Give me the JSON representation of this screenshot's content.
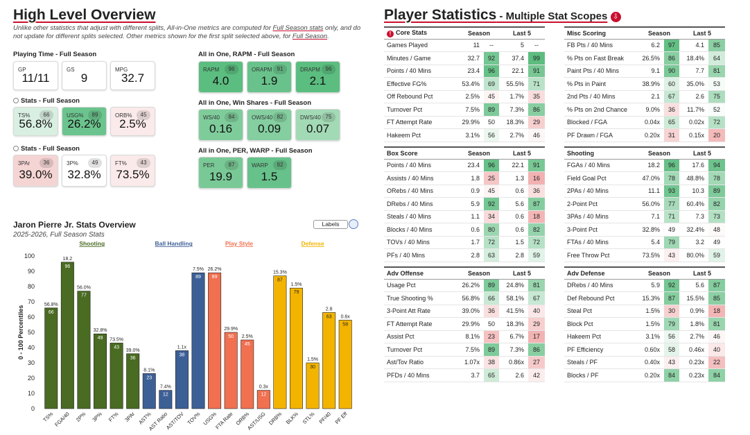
{
  "left": {
    "title": "High Level Overview",
    "note_a": "Unlike other statistics that adjust with different splits, All-in-One metrics are computed for ",
    "note_link": "Full Season stats",
    "note_b": " only, and do not update for different splits selected. Other metrics shown for the first split selected above, for ",
    "note_link2": "Full Season",
    "note_end": ".",
    "playing_time_title": "Playing Time - Full Season",
    "playing_time": [
      {
        "label": "GP",
        "value": "11/11"
      },
      {
        "label": "GS",
        "value": "9"
      },
      {
        "label": "MPG",
        "value": "32.7"
      }
    ],
    "stats1_title": "Stats - Full Season",
    "stats1": [
      {
        "label": "TS%",
        "pct": "66",
        "value": "56.8%",
        "color": "#d9efe1"
      },
      {
        "label": "USG%",
        "pct": "89",
        "value": "26.2%",
        "color": "#6bc48d"
      },
      {
        "label": "ORB%",
        "pct": "45",
        "value": "2.5%",
        "color": "#fbeaea"
      }
    ],
    "stats2_title": "Stats - Full Season",
    "stats2": [
      {
        "label": "3PAr",
        "pct": "36",
        "value": "39.0%",
        "color": "#f5d4d4"
      },
      {
        "label": "3P%",
        "pct": "49",
        "value": "32.8%",
        "color": "#ffffff"
      },
      {
        "label": "FT%",
        "pct": "43",
        "value": "73.5%",
        "color": "#fbeaea"
      }
    ],
    "rapm_title": "All in One, RAPM - Full Season",
    "rapm": [
      {
        "label": "RAPM",
        "pct": "96",
        "value": "4.0",
        "color": "#5bbd7f"
      },
      {
        "label": "ORAPM",
        "pct": "91",
        "value": "1.9",
        "color": "#69c28b"
      },
      {
        "label": "DRAPM",
        "pct": "96",
        "value": "2.1",
        "color": "#5bbd7f"
      }
    ],
    "ws_title": "All in One, Win Shares - Full Season",
    "ws": [
      {
        "label": "WS/40",
        "pct": "84",
        "value": "0.16",
        "color": "#7fcc9b"
      },
      {
        "label": "OWS/40",
        "pct": "82",
        "value": "0.09",
        "color": "#84cea0"
      },
      {
        "label": "DWS/40",
        "pct": "75",
        "value": "0.07",
        "color": "#a3dab6"
      }
    ],
    "per_title": "All in One, PER, WARP - Full Season",
    "per": [
      {
        "label": "PER",
        "pct": "87",
        "value": "19.9",
        "color": "#79c996"
      },
      {
        "label": "WARP",
        "pct": "92",
        "value": "1.5",
        "color": "#67c18a"
      }
    ]
  },
  "chart_title": "Jaron Pierre Jr. Stats Overview",
  "chart_subtitle": "2025-2026, Full Season Stats",
  "labels_button": "Labels",
  "chart_data": {
    "type": "bar",
    "ylabel": "0 - 100 Percentiles",
    "ylim": [
      0,
      100
    ],
    "yticks": [
      0,
      10,
      20,
      30,
      40,
      50,
      60,
      70,
      80,
      90,
      100
    ],
    "groups": [
      {
        "name": "Shooting",
        "color": "#4a6b22"
      },
      {
        "name": "Ball Handling",
        "color": "#3c5f96"
      },
      {
        "name": "Play Style",
        "color": "#f07050"
      },
      {
        "name": "Defense",
        "color": "#f3b400"
      }
    ],
    "bars": [
      {
        "cat": "TS%",
        "value": 66,
        "raw": "56.8%",
        "group": 0
      },
      {
        "cat": "FGA/40",
        "value": 96,
        "raw": "18.2",
        "group": 0
      },
      {
        "cat": "2P%",
        "value": 77,
        "raw": "56.0%",
        "group": 0
      },
      {
        "cat": "3P%",
        "value": 49,
        "raw": "32.8%",
        "group": 0
      },
      {
        "cat": "FT%",
        "value": 43,
        "raw": "73.5%",
        "group": 0
      },
      {
        "cat": "3PAr",
        "value": 36,
        "raw": "39.0%",
        "group": 0
      },
      {
        "cat": "AST%",
        "value": 23,
        "raw": "8.1%",
        "group": 1
      },
      {
        "cat": "AST Ratio",
        "value": 12,
        "raw": "7.4%",
        "group": 1
      },
      {
        "cat": "AST/TOV",
        "value": 38,
        "raw": "1.1x",
        "group": 1
      },
      {
        "cat": "TOV%",
        "value": 89,
        "raw": "7.5%",
        "group": 1
      },
      {
        "cat": "USG%",
        "value": 89,
        "raw": "26.2%",
        "group": 2
      },
      {
        "cat": "FTA Rate",
        "value": 50,
        "raw": "29.9%",
        "group": 2
      },
      {
        "cat": "ORB%",
        "value": 45,
        "raw": "2.5%",
        "group": 2
      },
      {
        "cat": "AST/USG",
        "value": 12,
        "raw": "0.3x",
        "group": 2
      },
      {
        "cat": "DRB%",
        "value": 87,
        "raw": "15.3%",
        "group": 3
      },
      {
        "cat": "BLK%",
        "value": 79,
        "raw": "1.5%",
        "group": 3
      },
      {
        "cat": "STL%",
        "value": 30,
        "raw": "1.5%",
        "group": 3
      },
      {
        "cat": "PF/40",
        "value": 63,
        "raw": "2.8",
        "group": 3
      },
      {
        "cat": "PF Eff",
        "value": 58,
        "raw": "0.6x",
        "group": 3
      }
    ]
  },
  "right": {
    "title": "Player Statistics",
    "subtitle": " - Multiple Stat Scopes",
    "tables": [
      {
        "title": "Core Stats",
        "warn": true,
        "h1": "Season",
        "h2": "Last 5",
        "rows": [
          [
            "Games Played",
            "11",
            "--",
            "5",
            "--"
          ],
          [
            "Minutes / Game",
            "32.7",
            "92",
            "37.4",
            "99"
          ],
          [
            "Points / 40 Mins",
            "23.4",
            "96",
            "22.1",
            "91"
          ],
          [
            "Effective FG%",
            "53.4%",
            "69",
            "55.5%",
            "71"
          ],
          [
            "Off Rebound Pct",
            "2.5%",
            "45",
            "1.7%",
            "35"
          ],
          [
            "Turnover Pct",
            "7.5%",
            "89",
            "7.3%",
            "86"
          ],
          [
            "FT Attempt Rate",
            "29.9%",
            "50",
            "18.3%",
            "29"
          ],
          [
            "Hakeem Pct",
            "3.1%",
            "56",
            "2.7%",
            "46"
          ]
        ]
      },
      {
        "title": "Misc Scoring",
        "warn": false,
        "h1": "Season",
        "h2": "Last 5",
        "rows": [
          [
            "FB Pts / 40 Mins",
            "6.2",
            "97",
            "4.1",
            "85"
          ],
          [
            "% Pts on Fast Break",
            "26.5%",
            "86",
            "18.4%",
            "64"
          ],
          [
            "Paint Pts / 40 Mins",
            "9.1",
            "90",
            "7.7",
            "81"
          ],
          [
            "% Pts in Paint",
            "38.9%",
            "60",
            "35.0%",
            "53"
          ],
          [
            "2nd Pts / 40 Mins",
            "2.1",
            "67",
            "2.6",
            "75"
          ],
          [
            "% Pts on 2nd Chance",
            "9.0%",
            "36",
            "11.7%",
            "52"
          ],
          [
            "Blocked / FGA",
            "0.04x",
            "65",
            "0.02x",
            "72"
          ],
          [
            "PF Drawn / FGA",
            "0.20x",
            "31",
            "0.15x",
            "20"
          ]
        ]
      },
      {
        "title": "Box Score",
        "warn": false,
        "h1": "Season",
        "h2": "Last 5",
        "rows": [
          [
            "Points / 40 Mins",
            "23.4",
            "96",
            "22.1",
            "91"
          ],
          [
            "Assists / 40 Mins",
            "1.8",
            "25",
            "1.3",
            "16"
          ],
          [
            "ORebs / 40 Mins",
            "0.9",
            "45",
            "0.6",
            "36"
          ],
          [
            "DRebs / 40 Mins",
            "5.9",
            "92",
            "5.6",
            "87"
          ],
          [
            "Steals / 40 Mins",
            "1.1",
            "34",
            "0.6",
            "18"
          ],
          [
            "Blocks / 40 Mins",
            "0.6",
            "80",
            "0.6",
            "82"
          ],
          [
            "TOVs / 40 Mins",
            "1.7",
            "72",
            "1.5",
            "72"
          ],
          [
            "PFs / 40 Mins",
            "2.8",
            "63",
            "2.8",
            "59"
          ]
        ]
      },
      {
        "title": "Shooting",
        "warn": false,
        "h1": "Season",
        "h2": "Last 5",
        "rows": [
          [
            "FGAs / 40 Mins",
            "18.2",
            "96",
            "17.6",
            "94"
          ],
          [
            "Field Goal Pct",
            "47.0%",
            "78",
            "48.8%",
            "78"
          ],
          [
            "2PAs / 40 Mins",
            "11.1",
            "93",
            "10.3",
            "89"
          ],
          [
            "2-Point Pct",
            "56.0%",
            "77",
            "60.4%",
            "82"
          ],
          [
            "3PAs / 40 Mins",
            "7.1",
            "71",
            "7.3",
            "73"
          ],
          [
            "3-Point Pct",
            "32.8%",
            "49",
            "32.4%",
            "48"
          ],
          [
            "FTAs / 40 Mins",
            "5.4",
            "79",
            "3.2",
            "49"
          ],
          [
            "Free Throw Pct",
            "73.5%",
            "43",
            "80.0%",
            "59"
          ]
        ]
      },
      {
        "title": "Adv Offense",
        "warn": false,
        "h1": "Season",
        "h2": "Last 5",
        "rows": [
          [
            "Usage Pct",
            "26.2%",
            "89",
            "24.8%",
            "81"
          ],
          [
            "True Shooting %",
            "56.8%",
            "66",
            "58.1%",
            "67"
          ],
          [
            "3-Point Att Rate",
            "39.0%",
            "36",
            "41.5%",
            "40"
          ],
          [
            "FT Attempt Rate",
            "29.9%",
            "50",
            "18.3%",
            "29"
          ],
          [
            "Assist Pct",
            "8.1%",
            "23",
            "6.7%",
            "17"
          ],
          [
            "Turnover Pct",
            "7.5%",
            "89",
            "7.3%",
            "86"
          ],
          [
            "Ast/Tov Ratio",
            "1.07x",
            "38",
            "0.86x",
            "27"
          ],
          [
            "PFDs / 40 Mins",
            "3.7",
            "65",
            "2.6",
            "42"
          ]
        ]
      },
      {
        "title": "Adv Defense",
        "warn": false,
        "h1": "Season",
        "h2": "Last 5",
        "rows": [
          [
            "DRebs / 40 Mins",
            "5.9",
            "92",
            "5.6",
            "87"
          ],
          [
            "Def Rebound Pct",
            "15.3%",
            "87",
            "15.5%",
            "85"
          ],
          [
            "Steal Pct",
            "1.5%",
            "30",
            "0.9%",
            "18"
          ],
          [
            "Block Pct",
            "1.5%",
            "79",
            "1.8%",
            "81"
          ],
          [
            "Hakeem Pct",
            "3.1%",
            "56",
            "2.7%",
            "46"
          ],
          [
            "PF Efficiency",
            "0.60x",
            "58",
            "0.46x",
            "40"
          ],
          [
            "Steals / PF",
            "0.40x",
            "43",
            "0.23x",
            "22"
          ],
          [
            "Blocks / PF",
            "0.20x",
            "84",
            "0.23x",
            "84"
          ]
        ]
      }
    ]
  }
}
